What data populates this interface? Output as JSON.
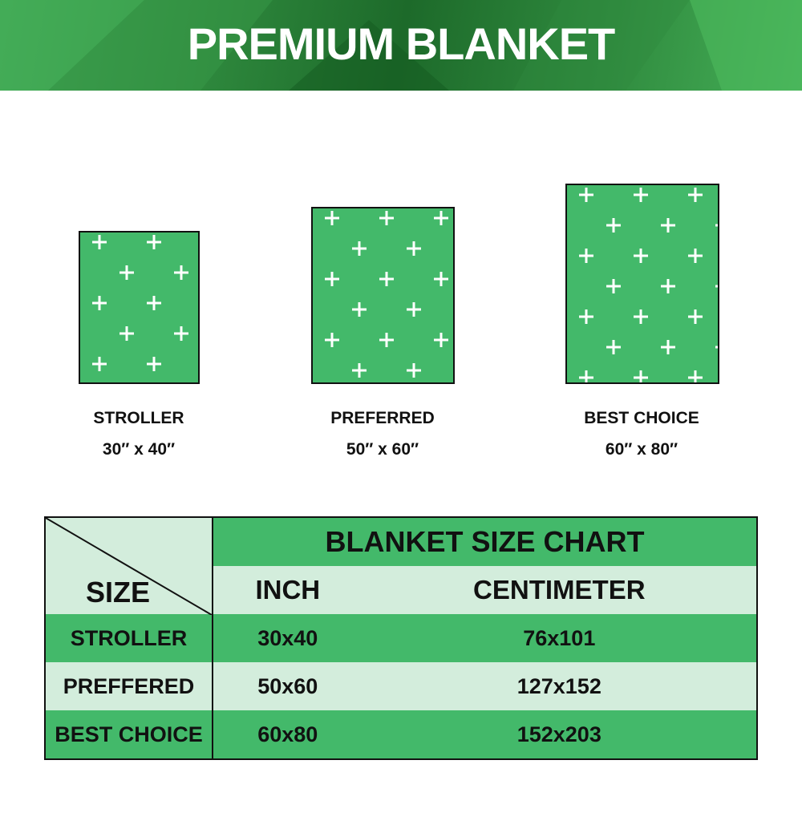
{
  "header": {
    "title": "PREMIUM BLANKET"
  },
  "colors": {
    "brand_green": "#43b96a",
    "light_green": "#d3eddc",
    "banner_dark": "#1d6a2a"
  },
  "blankets": [
    {
      "name": "STROLLER",
      "size": "30″ x 40″"
    },
    {
      "name": "PREFERRED",
      "size": "50″ x 60″"
    },
    {
      "name": "BEST CHOICE",
      "size": "60″ x 80″"
    }
  ],
  "table": {
    "title": "BLANKET SIZE CHART",
    "corner_label": "SIZE",
    "columns": [
      "INCH",
      "CENTIMETER"
    ],
    "rows": [
      {
        "size": "STROLLER",
        "inch": "30x40",
        "cm": "76x101"
      },
      {
        "size": "PREFFERED",
        "inch": "50x60",
        "cm": "127x152"
      },
      {
        "size": "BEST CHOICE",
        "inch": "60x80",
        "cm": "152x203"
      }
    ]
  }
}
